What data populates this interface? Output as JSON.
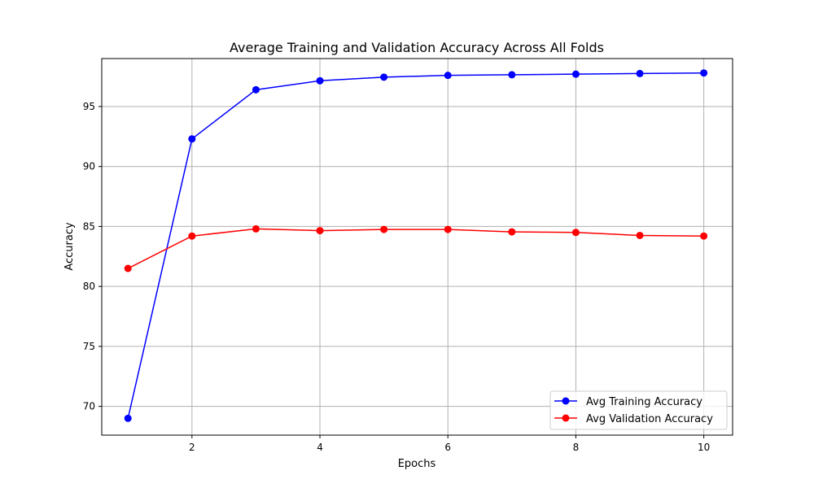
{
  "chart_data": {
    "type": "line",
    "title": "Average Training and Validation Accuracy Across All Folds",
    "xlabel": "Epochs",
    "ylabel": "Accuracy",
    "xlim": [
      0.59,
      10.45
    ],
    "ylim": [
      67.6,
      99.0
    ],
    "xticks": [
      2,
      4,
      6,
      8,
      10
    ],
    "yticks": [
      70,
      75,
      80,
      85,
      90,
      95
    ],
    "grid": true,
    "legend_position": "lower-right",
    "x": [
      1,
      2,
      3,
      4,
      5,
      6,
      7,
      8,
      9,
      10
    ],
    "series": [
      {
        "name": "Avg Training Accuracy",
        "color": "#0000ff",
        "marker": "circle",
        "values": [
          69.0,
          92.3,
          96.4,
          97.15,
          97.45,
          97.6,
          97.65,
          97.7,
          97.75,
          97.8
        ]
      },
      {
        "name": "Avg Validation Accuracy",
        "color": "#ff0000",
        "marker": "circle",
        "values": [
          81.5,
          84.2,
          84.8,
          84.65,
          84.75,
          84.75,
          84.55,
          84.5,
          84.25,
          84.2
        ]
      }
    ]
  }
}
